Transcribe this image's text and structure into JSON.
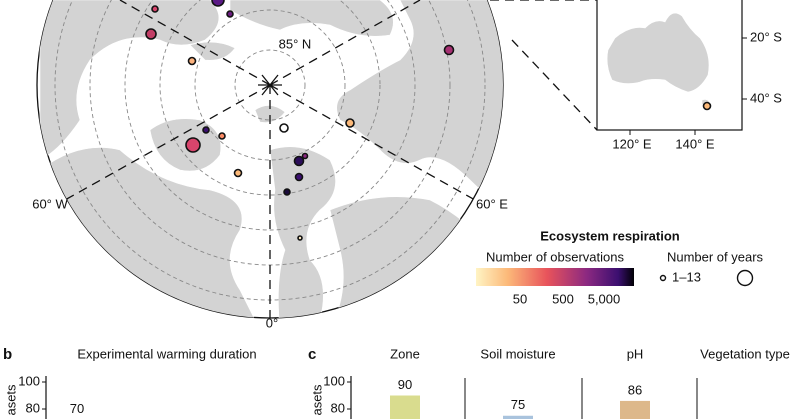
{
  "map": {
    "lat_label": "85° N",
    "west_label": "60° W",
    "east_label": "60° E",
    "south_label": "0°"
  },
  "inset": {
    "lon_labels": [
      "120° E",
      "140° E"
    ],
    "lat_labels": [
      "20° S",
      "40° S"
    ]
  },
  "legend": {
    "title": "Ecosystem respiration",
    "observations": {
      "title": "Number of observations",
      "ticks": [
        "50",
        "500",
        "5,000"
      ]
    },
    "years": {
      "title": "Number of years",
      "label": "1–13"
    }
  },
  "panel_b": {
    "label": "b",
    "title": "Experimental warming duration",
    "y_axis_label": "asets",
    "yticks": [
      100,
      80
    ],
    "values": [
      70
    ],
    "color": "#d9dc8e"
  },
  "panel_c": {
    "label": "c",
    "y_axis_label": "asets",
    "yticks": [
      100,
      80
    ],
    "groups": [
      {
        "title": "Zone",
        "value": 90,
        "color": "#d9dc8e"
      },
      {
        "title": "Soil moisture",
        "value": 75,
        "color": "#a9c3dd"
      },
      {
        "title": "pH",
        "value": 86,
        "color": "#ddb88a"
      },
      {
        "title": "Vegetation type"
      }
    ]
  }
}
